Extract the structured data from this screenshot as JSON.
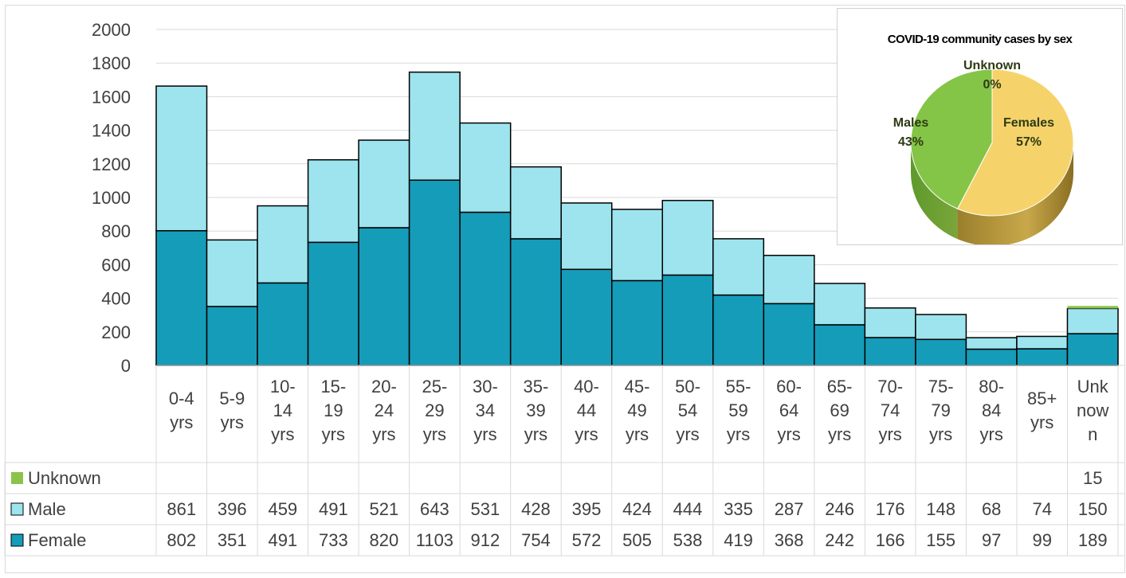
{
  "chart_data": [
    {
      "type": "bar",
      "stacked": true,
      "categories": [
        "0-4 yrs",
        "5-9 yrs",
        "10-14 yrs",
        "15-19 yrs",
        "20-24 yrs",
        "25-29 yrs",
        "30-34 yrs",
        "35-39 yrs",
        "40-44 yrs",
        "45-49 yrs",
        "50-54 yrs",
        "55-59 yrs",
        "60-64 yrs",
        "65-69 yrs",
        "70-74 yrs",
        "75-79 yrs",
        "80-84 yrs",
        "85+ yrs",
        "Unknown"
      ],
      "category_label_lines": [
        [
          "0-4",
          "yrs"
        ],
        [
          "5-9",
          "yrs"
        ],
        [
          "10-",
          "14",
          "yrs"
        ],
        [
          "15-",
          "19",
          "yrs"
        ],
        [
          "20-",
          "24",
          "yrs"
        ],
        [
          "25-",
          "29",
          "yrs"
        ],
        [
          "30-",
          "34",
          "yrs"
        ],
        [
          "35-",
          "39",
          "yrs"
        ],
        [
          "40-",
          "44",
          "yrs"
        ],
        [
          "45-",
          "49",
          "yrs"
        ],
        [
          "50-",
          "54",
          "yrs"
        ],
        [
          "55-",
          "59",
          "yrs"
        ],
        [
          "60-",
          "64",
          "yrs"
        ],
        [
          "65-",
          "69",
          "yrs"
        ],
        [
          "70-",
          "74",
          "yrs"
        ],
        [
          "75-",
          "79",
          "yrs"
        ],
        [
          "80-",
          "84",
          "yrs"
        ],
        [
          "85+",
          "yrs"
        ],
        [
          "Unk",
          "now",
          "n"
        ]
      ],
      "series": [
        {
          "name": "Female",
          "color": "#159cb9",
          "values": [
            802,
            351,
            491,
            733,
            820,
            1103,
            912,
            754,
            572,
            505,
            538,
            419,
            368,
            242,
            166,
            155,
            97,
            99,
            189
          ]
        },
        {
          "name": "Male",
          "color": "#9de4ee",
          "values": [
            861,
            396,
            459,
            491,
            521,
            643,
            531,
            428,
            395,
            424,
            444,
            335,
            287,
            246,
            176,
            148,
            68,
            74,
            150
          ]
        },
        {
          "name": "Unknown",
          "color": "#8bc34a",
          "values": [
            null,
            null,
            null,
            null,
            null,
            null,
            null,
            null,
            null,
            null,
            null,
            null,
            null,
            null,
            null,
            null,
            null,
            null,
            15
          ]
        }
      ],
      "ylim": [
        0,
        2000
      ],
      "yticks": [
        0,
        200,
        400,
        600,
        800,
        1000,
        1200,
        1400,
        1600,
        1800,
        2000
      ],
      "grid": true,
      "data_table": true,
      "title": "",
      "xlabel": "",
      "ylabel": ""
    },
    {
      "type": "pie",
      "title": "COVID-19 community cases by sex",
      "slices": [
        {
          "label": "Females",
          "value": 57,
          "display": "57%",
          "color": "#f5d36a"
        },
        {
          "label": "Males",
          "value": 43,
          "display": "43%",
          "color": "#84c447"
        },
        {
          "label": "Unknown",
          "value": 0,
          "display": "0%",
          "color": "#9ccf60"
        }
      ]
    }
  ]
}
